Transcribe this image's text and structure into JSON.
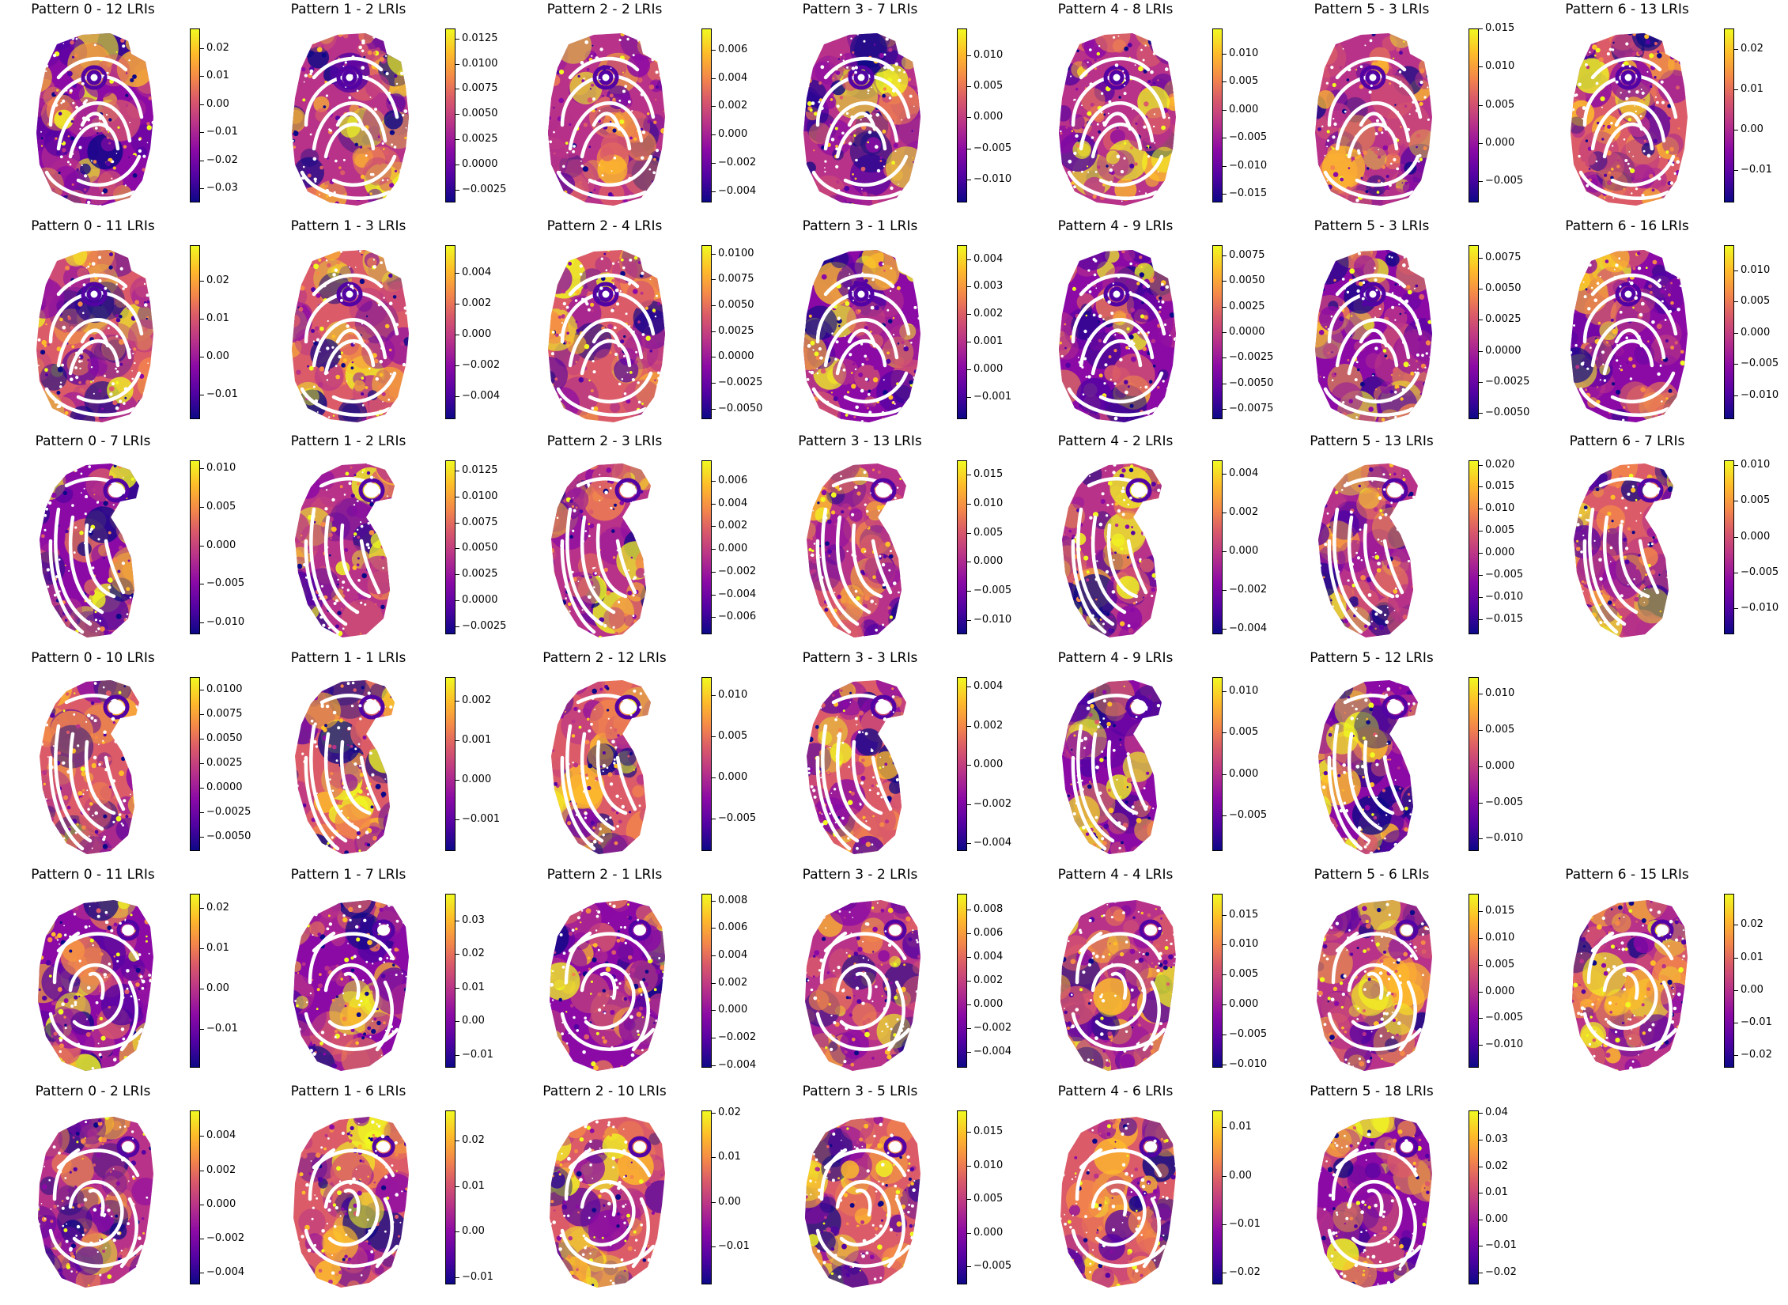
{
  "colormap": [
    "#0d0887",
    "#5302a3",
    "#8b0aa5",
    "#b83289",
    "#db5c68",
    "#f48849",
    "#febc2a",
    "#f0f921"
  ],
  "chart_data": {
    "type": "heatmap",
    "rows": [
      {
        "shape": "A",
        "panels": [
          {
            "title": "Pattern 0 - 12 LRIs",
            "ticks": [
              "0.02",
              "0.01",
              "0.00",
              "−0.01",
              "−0.02",
              "−0.03"
            ],
            "clim": [
              -0.035,
              0.027
            ]
          },
          {
            "title": "Pattern 1 - 2 LRIs",
            "ticks": [
              "0.0125",
              "0.0100",
              "0.0075",
              "0.0050",
              "0.0025",
              "0.0000",
              "−0.0025"
            ],
            "clim": [
              -0.0038,
              0.0135
            ]
          },
          {
            "title": "Pattern 2 - 2 LRIs",
            "ticks": [
              "0.006",
              "0.004",
              "0.002",
              "0.000",
              "−0.002",
              "−0.004"
            ],
            "clim": [
              -0.0048,
              0.0075
            ]
          },
          {
            "title": "Pattern 3 - 7 LRIs",
            "ticks": [
              "0.010",
              "0.005",
              "0.000",
              "−0.005",
              "−0.010"
            ],
            "clim": [
              -0.0137,
              0.0143
            ]
          },
          {
            "title": "Pattern 4 - 8 LRIs",
            "ticks": [
              "0.010",
              "0.005",
              "0.000",
              "−0.005",
              "−0.010",
              "−0.015"
            ],
            "clim": [
              -0.0165,
              0.0145
            ]
          },
          {
            "title": "Pattern 5 - 3 LRIs",
            "ticks": [
              "0.015",
              "0.010",
              "0.005",
              "0.000",
              "−0.005"
            ],
            "clim": [
              -0.0078,
              0.015
            ]
          },
          {
            "title": "Pattern 6 - 13 LRIs",
            "ticks": [
              "0.02",
              "0.01",
              "0.00",
              "−0.01"
            ],
            "clim": [
              -0.018,
              0.025
            ]
          }
        ]
      },
      {
        "shape": "A",
        "panels": [
          {
            "title": "Pattern 0 - 11 LRIs",
            "ticks": [
              "0.02",
              "0.01",
              "0.00",
              "−0.01"
            ],
            "clim": [
              -0.0165,
              0.0295
            ]
          },
          {
            "title": "Pattern 1 - 3 LRIs",
            "ticks": [
              "0.004",
              "0.002",
              "0.000",
              "−0.002",
              "−0.004"
            ],
            "clim": [
              -0.0055,
              0.0058
            ]
          },
          {
            "title": "Pattern 2 - 4 LRIs",
            "ticks": [
              "0.0100",
              "0.0075",
              "0.0050",
              "0.0025",
              "0.0000",
              "−0.0025",
              "−0.0050"
            ],
            "clim": [
              -0.006,
              0.0108
            ]
          },
          {
            "title": "Pattern 3 - 1 LRIs",
            "ticks": [
              "0.004",
              "0.003",
              "0.002",
              "0.001",
              "0.000",
              "−0.001"
            ],
            "clim": [
              -0.0018,
              0.0045
            ]
          },
          {
            "title": "Pattern 4 - 9 LRIs",
            "ticks": [
              "0.0075",
              "0.0050",
              "0.0025",
              "0.0000",
              "−0.0025",
              "−0.0050",
              "−0.0075"
            ],
            "clim": [
              -0.0085,
              0.0085
            ]
          },
          {
            "title": "Pattern 5 - 3 LRIs",
            "ticks": [
              "0.0075",
              "0.0050",
              "0.0025",
              "0.0000",
              "−0.0025",
              "−0.0050"
            ],
            "clim": [
              -0.0055,
              0.0085
            ]
          },
          {
            "title": "Pattern 6 - 16 LRIs",
            "ticks": [
              "0.010",
              "0.005",
              "0.000",
              "−0.005",
              "−0.010"
            ],
            "clim": [
              -0.0138,
              0.014
            ]
          }
        ]
      },
      {
        "shape": "B",
        "panels": [
          {
            "title": "Pattern 0 - 7 LRIs",
            "ticks": [
              "0.010",
              "0.005",
              "0.000",
              "−0.005",
              "−0.010"
            ],
            "clim": [
              -0.0115,
              0.011
            ]
          },
          {
            "title": "Pattern 1 - 2 LRIs",
            "ticks": [
              "0.0125",
              "0.0100",
              "0.0075",
              "0.0050",
              "0.0025",
              "0.0000",
              "−0.0025"
            ],
            "clim": [
              -0.0033,
              0.0135
            ]
          },
          {
            "title": "Pattern 2 - 3 LRIs",
            "ticks": [
              "0.006",
              "0.004",
              "0.002",
              "0.000",
              "−0.002",
              "−0.004",
              "−0.006"
            ],
            "clim": [
              -0.0075,
              0.0078
            ]
          },
          {
            "title": "Pattern 3 - 13 LRIs",
            "ticks": [
              "0.015",
              "0.010",
              "0.005",
              "0.000",
              "−0.005",
              "−0.010"
            ],
            "clim": [
              -0.0125,
              0.0175
            ]
          },
          {
            "title": "Pattern 4 - 2 LRIs",
            "ticks": [
              "0.004",
              "0.002",
              "0.000",
              "−0.002",
              "−0.004"
            ],
            "clim": [
              -0.0043,
              0.0047
            ]
          },
          {
            "title": "Pattern 5 - 13 LRIs",
            "ticks": [
              "0.020",
              "0.015",
              "0.010",
              "0.005",
              "0.000",
              "−0.005",
              "−0.010",
              "−0.015"
            ],
            "clim": [
              -0.0185,
              0.021
            ]
          },
          {
            "title": "Pattern 6 - 7 LRIs",
            "ticks": [
              "0.010",
              "0.005",
              "0.000",
              "−0.005",
              "−0.010"
            ],
            "clim": [
              -0.0137,
              0.0107
            ]
          }
        ]
      },
      {
        "shape": "B",
        "panels": [
          {
            "title": "Pattern 0 - 10 LRIs",
            "ticks": [
              "0.0100",
              "0.0075",
              "0.0050",
              "0.0025",
              "0.0000",
              "−0.0025",
              "−0.0050"
            ],
            "clim": [
              -0.0065,
              0.0113
            ]
          },
          {
            "title": "Pattern 1 - 1 LRIs",
            "ticks": [
              "0.002",
              "0.001",
              "0.000",
              "−0.001"
            ],
            "clim": [
              -0.0018,
              0.0026
            ]
          },
          {
            "title": "Pattern 2 - 12 LRIs",
            "ticks": [
              "0.010",
              "0.005",
              "0.000",
              "−0.005"
            ],
            "clim": [
              -0.009,
              0.0122
            ]
          },
          {
            "title": "Pattern 3 - 3 LRIs",
            "ticks": [
              "0.004",
              "0.002",
              "0.000",
              "−0.002",
              "−0.004"
            ],
            "clim": [
              -0.0044,
              0.0045
            ]
          },
          {
            "title": "Pattern 4 - 9 LRIs",
            "ticks": [
              "0.010",
              "0.005",
              "0.000",
              "−0.005"
            ],
            "clim": [
              -0.0093,
              0.0117
            ]
          },
          {
            "title": "Pattern 5 - 12 LRIs",
            "ticks": [
              "0.010",
              "0.005",
              "0.000",
              "−0.005",
              "−0.010"
            ],
            "clim": [
              -0.0117,
              0.0123
            ]
          }
        ]
      },
      {
        "shape": "C",
        "panels": [
          {
            "title": "Pattern 0 - 11 LRIs",
            "ticks": [
              "0.02",
              "0.01",
              "0.00",
              "−0.01"
            ],
            "clim": [
              -0.0195,
              0.0235
            ]
          },
          {
            "title": "Pattern 1 - 7 LRIs",
            "ticks": [
              "0.03",
              "0.02",
              "0.01",
              "0.00",
              "−0.01"
            ],
            "clim": [
              -0.0138,
              0.038
            ]
          },
          {
            "title": "Pattern 2 - 1 LRIs",
            "ticks": [
              "0.008",
              "0.006",
              "0.004",
              "0.002",
              "0.000",
              "−0.002",
              "−0.004"
            ],
            "clim": [
              -0.0042,
              0.0085
            ]
          },
          {
            "title": "Pattern 3 - 2 LRIs",
            "ticks": [
              "0.008",
              "0.006",
              "0.004",
              "0.002",
              "0.000",
              "−0.002",
              "−0.004"
            ],
            "clim": [
              -0.0053,
              0.0093
            ]
          },
          {
            "title": "Pattern 4 - 4 LRIs",
            "ticks": [
              "0.015",
              "0.010",
              "0.005",
              "0.000",
              "−0.005",
              "−0.010"
            ],
            "clim": [
              -0.0106,
              0.0185
            ]
          },
          {
            "title": "Pattern 5 - 6 LRIs",
            "ticks": [
              "0.015",
              "0.010",
              "0.005",
              "0.000",
              "−0.005",
              "−0.010"
            ],
            "clim": [
              -0.0143,
              0.0183
            ]
          },
          {
            "title": "Pattern 6 - 15 LRIs",
            "ticks": [
              "0.02",
              "0.01",
              "0.00",
              "−0.01",
              "−0.02"
            ],
            "clim": [
              -0.0238,
              0.0295
            ]
          }
        ]
      },
      {
        "shape": "C",
        "panels": [
          {
            "title": "Pattern 0 - 2 LRIs",
            "ticks": [
              "0.004",
              "0.002",
              "0.000",
              "−0.002",
              "−0.004"
            ],
            "clim": [
              -0.0047,
              0.0055
            ]
          },
          {
            "title": "Pattern 1 - 6 LRIs",
            "ticks": [
              "0.02",
              "0.01",
              "0.00",
              "−0.01"
            ],
            "clim": [
              -0.0115,
              0.0265
            ]
          },
          {
            "title": "Pattern 2 - 10 LRIs",
            "ticks": [
              "0.02",
              "0.01",
              "0.00",
              "−0.01"
            ],
            "clim": [
              -0.0185,
              0.0205
            ]
          },
          {
            "title": "Pattern 3 - 5 LRIs",
            "ticks": [
              "0.015",
              "0.010",
              "0.005",
              "0.000",
              "−0.005"
            ],
            "clim": [
              -0.0077,
              0.0182
            ]
          },
          {
            "title": "Pattern 4 - 6 LRIs",
            "ticks": [
              "0.01",
              "0.00",
              "−0.01",
              "−0.02"
            ],
            "clim": [
              -0.0225,
              0.0135
            ]
          },
          {
            "title": "Pattern 5 - 18 LRIs",
            "ticks": [
              "0.04",
              "0.03",
              "0.02",
              "0.01",
              "0.00",
              "−0.01",
              "−0.02"
            ],
            "clim": [
              -0.0245,
              0.041
            ]
          }
        ]
      }
    ]
  }
}
